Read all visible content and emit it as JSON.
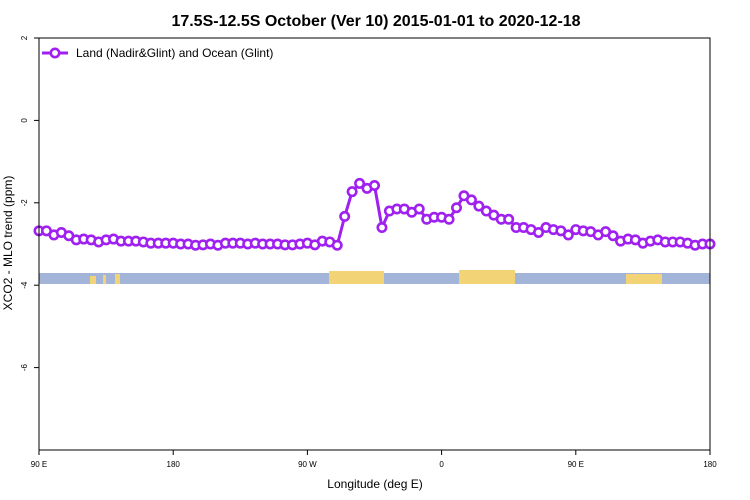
{
  "chart_data": {
    "type": "line",
    "title": "17.5S-12.5S October (Ver 10)   2015-01-01 to 2020-12-18",
    "xlabel": "Longitude (deg E)",
    "ylabel": "XCO2 - MLO trend (ppm)",
    "xlim": [
      90,
      450
    ],
    "ylim": [
      -8,
      2
    ],
    "x_ticks": [
      {
        "value": 90,
        "label": "90 E"
      },
      {
        "value": 162,
        "label": "180"
      },
      {
        "value": 234,
        "label": "90 W"
      },
      {
        "value": 306,
        "label": "0"
      },
      {
        "value": 378,
        "label": "90 E"
      },
      {
        "value": 450,
        "label": "180"
      }
    ],
    "y_ticks": [
      {
        "value": 2,
        "label": "2"
      },
      {
        "value": 0,
        "label": "0"
      },
      {
        "value": -2,
        "label": "-2"
      },
      {
        "value": -4,
        "label": "-4"
      },
      {
        "value": -6,
        "label": "-6"
      }
    ],
    "legend": {
      "position": "top-left"
    },
    "grid": false,
    "series": [
      {
        "name": "Land (Nadir&Glint) and Ocean (Glint)",
        "color": "#a020f0",
        "x": [
          90,
          94,
          98,
          102,
          106,
          110,
          114,
          118,
          122,
          126,
          130,
          134,
          138,
          142,
          146,
          150,
          154,
          158,
          162,
          166,
          170,
          174,
          178,
          182,
          186,
          190,
          194,
          198,
          202,
          206,
          210,
          214,
          218,
          222,
          226,
          230,
          234,
          238,
          242,
          246,
          250,
          254,
          258,
          262,
          266,
          270,
          274,
          278,
          282,
          286,
          290,
          294,
          298,
          302,
          306,
          310,
          314,
          318,
          322,
          326,
          330,
          334,
          338,
          342,
          346,
          350,
          354,
          358,
          362,
          366,
          370,
          374,
          378,
          382,
          386,
          390,
          394,
          398,
          402,
          406,
          410,
          414,
          418,
          422,
          426,
          430,
          434,
          438,
          442,
          446,
          450
        ],
        "y": [
          -2.68,
          -2.68,
          -2.78,
          -2.72,
          -2.8,
          -2.9,
          -2.88,
          -2.9,
          -2.95,
          -2.9,
          -2.88,
          -2.93,
          -2.93,
          -2.93,
          -2.95,
          -2.98,
          -2.98,
          -2.98,
          -2.98,
          -3.0,
          -3.0,
          -3.03,
          -3.02,
          -3.0,
          -3.03,
          -2.98,
          -2.98,
          -2.98,
          -3.0,
          -2.98,
          -3.0,
          -3.0,
          -3.0,
          -3.02,
          -3.02,
          -3.0,
          -2.98,
          -3.02,
          -2.93,
          -2.95,
          -3.03,
          -2.33,
          -1.73,
          -1.53,
          -1.65,
          -1.58,
          -2.6,
          -2.2,
          -2.15,
          -2.15,
          -2.23,
          -2.15,
          -2.4,
          -2.35,
          -2.35,
          -2.4,
          -2.12,
          -1.83,
          -1.93,
          -2.08,
          -2.2,
          -2.3,
          -2.4,
          -2.4,
          -2.6,
          -2.6,
          -2.65,
          -2.72,
          -2.6,
          -2.65,
          -2.68,
          -2.78,
          -2.65,
          -2.68,
          -2.7,
          -2.78,
          -2.7,
          -2.8,
          -2.93,
          -2.88,
          -2.9,
          -2.98,
          -2.93,
          -2.9,
          -2.95,
          -2.95,
          -2.95,
          -2.98,
          -3.03,
          -3.0,
          -3.0
        ]
      }
    ]
  }
}
